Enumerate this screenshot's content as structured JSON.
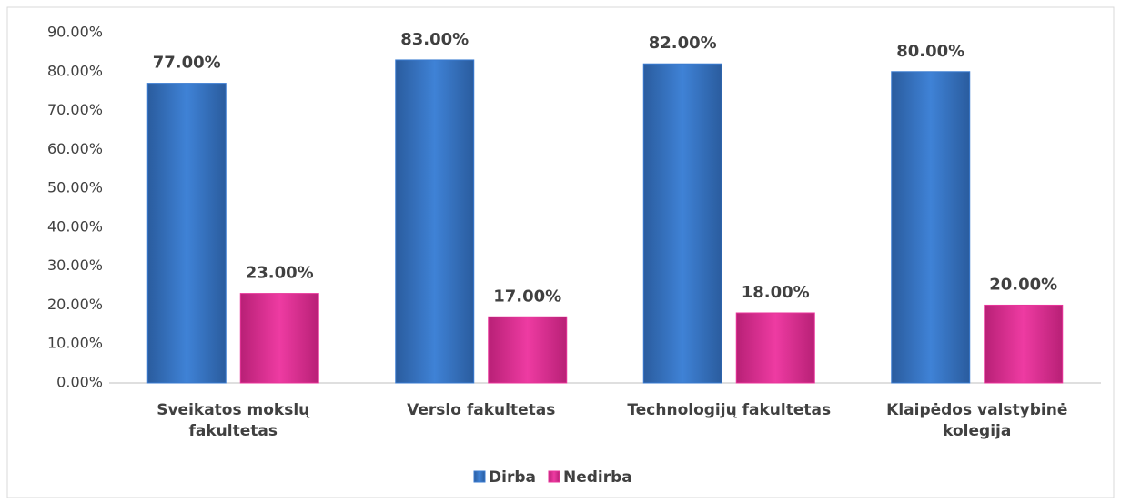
{
  "chart_data": {
    "type": "bar",
    "categories": [
      "Sveikatos mokslų fakultetas",
      "Verslo fakultetas",
      "Technologijų fakultetas",
      "Klaipėdos valstybinė kolegija"
    ],
    "series": [
      {
        "name": "Dirba",
        "color": "#3a7bd0",
        "values": [
          77,
          83,
          82,
          80
        ],
        "value_labels": [
          "77.00%",
          "83.00%",
          "82.00%",
          "80.00%"
        ]
      },
      {
        "name": "Nedirba",
        "color": "#e8349a",
        "values": [
          23,
          17,
          18,
          20
        ],
        "value_labels": [
          "23.00%",
          "17.00%",
          "18.00%",
          "20.00%"
        ]
      }
    ],
    "ylim": [
      0,
      90
    ],
    "yticks": [
      {
        "value": 0,
        "label": "0.00%"
      },
      {
        "value": 10,
        "label": "10.00%"
      },
      {
        "value": 20,
        "label": "20.00%"
      },
      {
        "value": 30,
        "label": "30.00%"
      },
      {
        "value": 40,
        "label": "40.00%"
      },
      {
        "value": 50,
        "label": "50.00%"
      },
      {
        "value": 60,
        "label": "60.00%"
      },
      {
        "value": 70,
        "label": "70.00%"
      },
      {
        "value": 80,
        "label": "80.00%"
      },
      {
        "value": 90,
        "label": "90.00%"
      }
    ],
    "legend": "bottom"
  }
}
